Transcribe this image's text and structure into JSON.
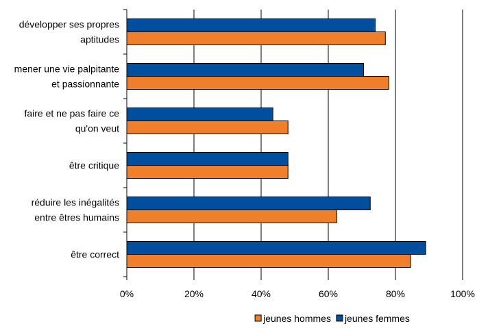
{
  "chart_data": {
    "type": "bar",
    "orientation": "horizontal",
    "categories": [
      [
        "développer ses propres",
        "aptitudes"
      ],
      [
        "mener une vie palpitante",
        "et passionnante"
      ],
      [
        "faire et ne pas faire ce",
        "qu'on veut"
      ],
      [
        "être critique"
      ],
      [
        "réduire les inégalités",
        "entre êtres humains"
      ],
      [
        "être correct"
      ]
    ],
    "series": [
      {
        "name": "jeunes femmes",
        "color": "#004F9F",
        "values": [
          74,
          70.5,
          43.5,
          48,
          72.5,
          89
        ]
      },
      {
        "name": "jeunes hommes",
        "color": "#F07F2C",
        "values": [
          77,
          78,
          48,
          48,
          62.5,
          84.5
        ]
      }
    ],
    "xlim": [
      0,
      100
    ],
    "x_ticks": [
      "0%",
      "20%",
      "40%",
      "60%",
      "80%",
      "100%"
    ],
    "grid": true,
    "legend": {
      "placement": "bottom",
      "entries": [
        {
          "name": "jeunes hommes",
          "color": "#F07F2C"
        },
        {
          "name": "jeunes femmes",
          "color": "#004F9F"
        }
      ]
    }
  }
}
